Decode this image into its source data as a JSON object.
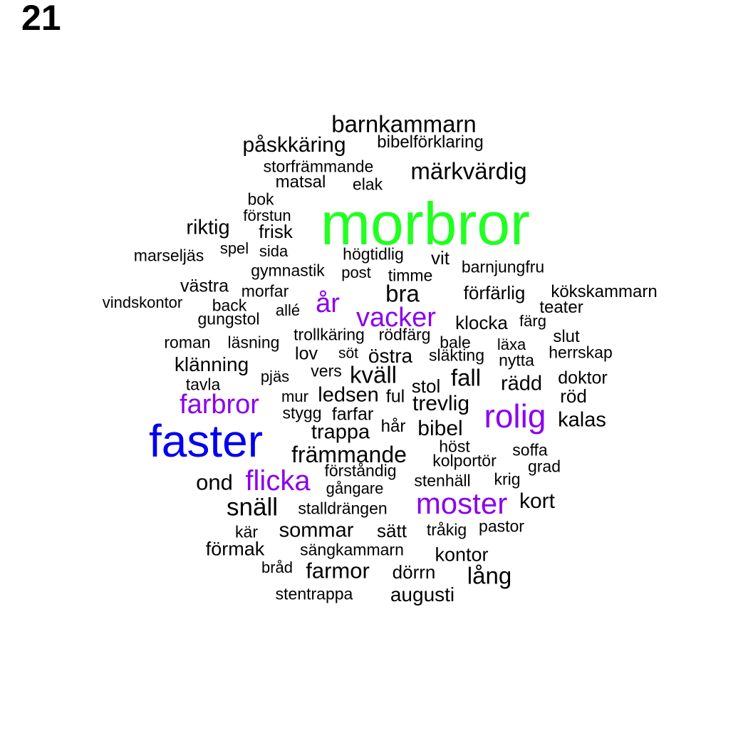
{
  "page_number": "21",
  "colors": {
    "black": "#000000",
    "green": "#22ff22",
    "blue": "#0000ee",
    "purple": "#8a00ee"
  },
  "words": [
    {
      "text": "morbror",
      "color": "green"
    },
    {
      "text": "faster",
      "color": "blue"
    },
    {
      "text": "rolig",
      "color": "purple"
    },
    {
      "text": "vacker",
      "color": "purple"
    },
    {
      "text": "moster",
      "color": "purple"
    },
    {
      "text": "flicka",
      "color": "purple"
    },
    {
      "text": "farbror",
      "color": "purple"
    },
    {
      "text": "år",
      "color": "purple"
    },
    {
      "text": "barnkammarn",
      "color": "black"
    },
    {
      "text": "påskkäring",
      "color": "black"
    },
    {
      "text": "bibelförklaring",
      "color": "black"
    },
    {
      "text": "storfrämmande",
      "color": "black"
    },
    {
      "text": "märkvärdig",
      "color": "black"
    },
    {
      "text": "matsal",
      "color": "black"
    },
    {
      "text": "elak",
      "color": "black"
    },
    {
      "text": "bok",
      "color": "black"
    },
    {
      "text": "förstun",
      "color": "black"
    },
    {
      "text": "riktig",
      "color": "black"
    },
    {
      "text": "frisk",
      "color": "black"
    },
    {
      "text": "spel",
      "color": "black"
    },
    {
      "text": "sida",
      "color": "black"
    },
    {
      "text": "marseljäs",
      "color": "black"
    },
    {
      "text": "högtidlig",
      "color": "black"
    },
    {
      "text": "vit",
      "color": "black"
    },
    {
      "text": "barnjungfru",
      "color": "black"
    },
    {
      "text": "gymnastik",
      "color": "black"
    },
    {
      "text": "post",
      "color": "black"
    },
    {
      "text": "timme",
      "color": "black"
    },
    {
      "text": "västra",
      "color": "black"
    },
    {
      "text": "morfar",
      "color": "black"
    },
    {
      "text": "bra",
      "color": "black"
    },
    {
      "text": "förfärlig",
      "color": "black"
    },
    {
      "text": "kökskammarn",
      "color": "black"
    },
    {
      "text": "vindskontor",
      "color": "black"
    },
    {
      "text": "back",
      "color": "black"
    },
    {
      "text": "teater",
      "color": "black"
    },
    {
      "text": "allé",
      "color": "black"
    },
    {
      "text": "gungstol",
      "color": "black"
    },
    {
      "text": "klocka",
      "color": "black"
    },
    {
      "text": "färg",
      "color": "black"
    },
    {
      "text": "slut",
      "color": "black"
    },
    {
      "text": "roman",
      "color": "black"
    },
    {
      "text": "läsning",
      "color": "black"
    },
    {
      "text": "trollkäring",
      "color": "black"
    },
    {
      "text": "rödfärg",
      "color": "black"
    },
    {
      "text": "bale",
      "color": "black"
    },
    {
      "text": "läxa",
      "color": "black"
    },
    {
      "text": "herrskap",
      "color": "black"
    },
    {
      "text": "lov",
      "color": "black"
    },
    {
      "text": "söt",
      "color": "black"
    },
    {
      "text": "östra",
      "color": "black"
    },
    {
      "text": "släkting",
      "color": "black"
    },
    {
      "text": "nytta",
      "color": "black"
    },
    {
      "text": "klänning",
      "color": "black"
    },
    {
      "text": "vers",
      "color": "black"
    },
    {
      "text": "kväll",
      "color": "black"
    },
    {
      "text": "fall",
      "color": "black"
    },
    {
      "text": "pjäs",
      "color": "black"
    },
    {
      "text": "doktor",
      "color": "black"
    },
    {
      "text": "tavla",
      "color": "black"
    },
    {
      "text": "stol",
      "color": "black"
    },
    {
      "text": "rädd",
      "color": "black"
    },
    {
      "text": "mur",
      "color": "black"
    },
    {
      "text": "ledsen",
      "color": "black"
    },
    {
      "text": "ful",
      "color": "black"
    },
    {
      "text": "röd",
      "color": "black"
    },
    {
      "text": "trevlig",
      "color": "black"
    },
    {
      "text": "stygg",
      "color": "black"
    },
    {
      "text": "farfar",
      "color": "black"
    },
    {
      "text": "kalas",
      "color": "black"
    },
    {
      "text": "trappa",
      "color": "black"
    },
    {
      "text": "hår",
      "color": "black"
    },
    {
      "text": "bibel",
      "color": "black"
    },
    {
      "text": "höst",
      "color": "black"
    },
    {
      "text": "soffa",
      "color": "black"
    },
    {
      "text": "främmande",
      "color": "black"
    },
    {
      "text": "kolportör",
      "color": "black"
    },
    {
      "text": "grad",
      "color": "black"
    },
    {
      "text": "förståndig",
      "color": "black"
    },
    {
      "text": "ond",
      "color": "black"
    },
    {
      "text": "stenhäll",
      "color": "black"
    },
    {
      "text": "krig",
      "color": "black"
    },
    {
      "text": "gångare",
      "color": "black"
    },
    {
      "text": "kort",
      "color": "black"
    },
    {
      "text": "snäll",
      "color": "black"
    },
    {
      "text": "stalldrängen",
      "color": "black"
    },
    {
      "text": "pastor",
      "color": "black"
    },
    {
      "text": "kär",
      "color": "black"
    },
    {
      "text": "sommar",
      "color": "black"
    },
    {
      "text": "sätt",
      "color": "black"
    },
    {
      "text": "tråkig",
      "color": "black"
    },
    {
      "text": "förmak",
      "color": "black"
    },
    {
      "text": "sängkammarn",
      "color": "black"
    },
    {
      "text": "kontor",
      "color": "black"
    },
    {
      "text": "bråd",
      "color": "black"
    },
    {
      "text": "farmor",
      "color": "black"
    },
    {
      "text": "dörrn",
      "color": "black"
    },
    {
      "text": "lång",
      "color": "black"
    },
    {
      "text": "stentrappa",
      "color": "black"
    },
    {
      "text": "augusti",
      "color": "black"
    }
  ]
}
